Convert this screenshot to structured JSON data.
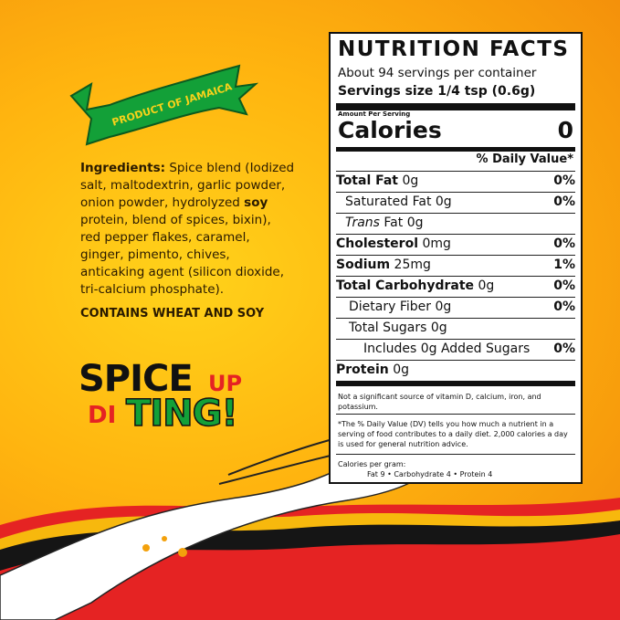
{
  "banner": "PRODUCT OF JAMAICA",
  "ingredients": {
    "label": "Ingredients:",
    "text_1": " Spice blend (Iodized salt, maltodextrin, garlic powder, onion powder, hydrolyzed ",
    "bold": "soy",
    "text_2": " protein, blend of spices, bixin), red pepper flakes, caramel, ginger, pimento, chives, anticaking agent (silicon dioxide, tri-calcium phosphate)."
  },
  "contains": "CONTAINS WHEAT AND SOY",
  "slogan": [
    "SPICE",
    "UP",
    "DI",
    "TING!"
  ],
  "nutrition": {
    "title": "NUTRITION FACTS",
    "servings": "About 94 servings per container",
    "serving_size": "Servings size 1/4 tsp (0.6g)",
    "amount_per": "Amount Per Serving",
    "calories_label": "Calories",
    "calories": "0",
    "dv_header": "% Daily Value*",
    "rows": [
      {
        "label": "Total Fat",
        "amount": "0g",
        "dv": "0%"
      },
      {
        "label": "Saturated Fat 0g",
        "dv": "0%"
      },
      {
        "label": "Trans",
        "label_2": " Fat 0g"
      },
      {
        "label": "Cholesterol",
        "amount": "0mg",
        "dv": "0%"
      },
      {
        "label": "Sodium",
        "amount": "25mg",
        "dv": "1%"
      },
      {
        "label": "Total Carbohydrate",
        "amount": "0g",
        "dv": "0%"
      },
      {
        "label": "Dietary Fiber 0g",
        "dv": "0%"
      },
      {
        "label": "Total Sugars 0g"
      },
      {
        "label": "Includes 0g Added Sugars",
        "dv": "0%"
      },
      {
        "label": "Protein",
        "amount": "0g"
      }
    ],
    "footnotes": [
      "Not a significant source of vitamin D, calcium, iron, and potassium.",
      "*The % Daily Value (DV) tells you how much a nutrient in a serving of food contributes to a daily diet. 2,000 calories a day is used for general nutrition advice.",
      "Calories per gram:",
      "Fat 9 • Carbohydrate 4 • Protein 4"
    ]
  }
}
